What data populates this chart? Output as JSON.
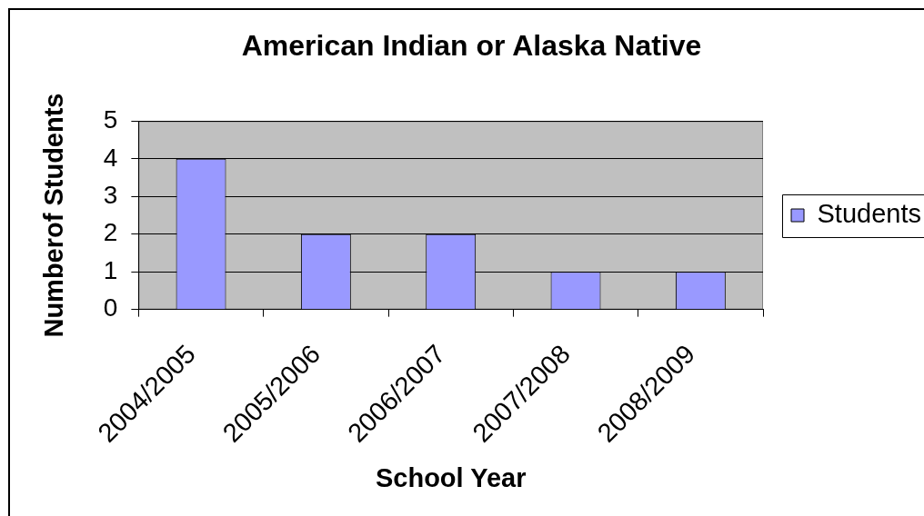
{
  "chart_data": {
    "type": "bar",
    "title": "American Indian or Alaska Native",
    "xlabel": "School Year",
    "ylabel": "Numberof Students",
    "categories": [
      "2004/2005",
      "2005/2006",
      "2006/2007",
      "2007/2008",
      "2008/2009"
    ],
    "series": [
      {
        "name": "Students",
        "color": "#9999ff",
        "values": [
          4,
          2,
          2,
          1,
          1
        ]
      }
    ],
    "ylim": [
      0,
      5
    ],
    "yticks": [
      0,
      1,
      2,
      3,
      4,
      5
    ],
    "grid": "y",
    "legend": "right"
  }
}
